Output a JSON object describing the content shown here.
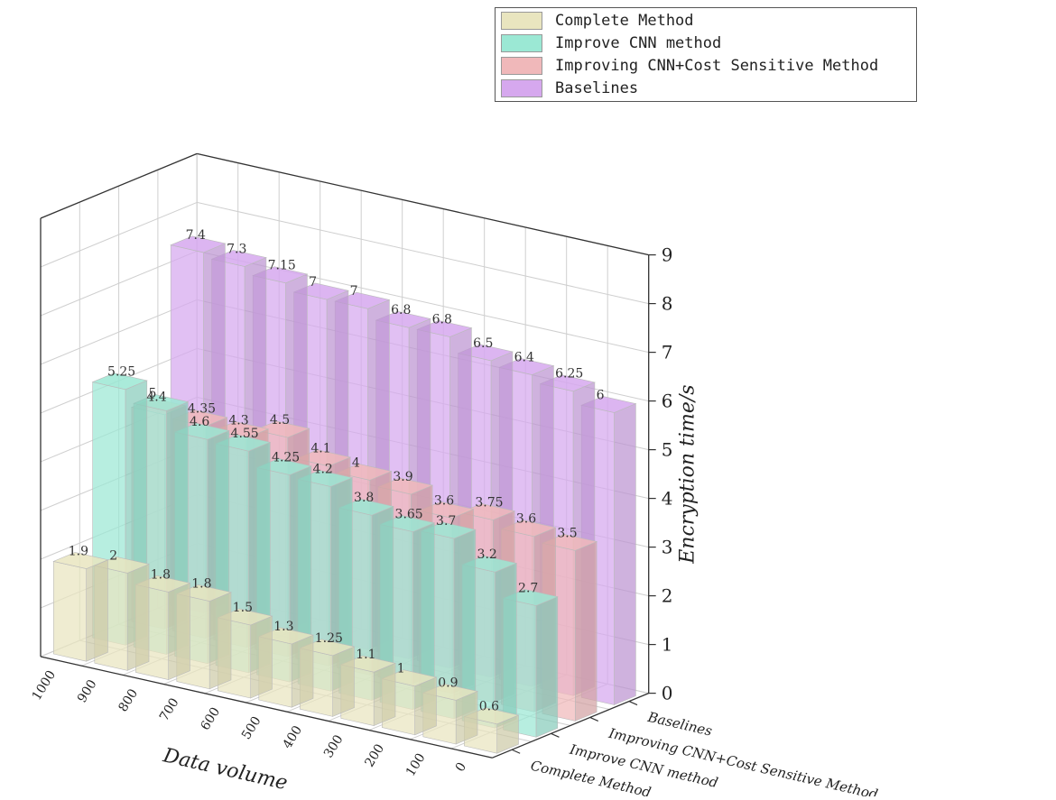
{
  "chart_data": {
    "type": "bar",
    "subtype": "3d-grouped",
    "x": [
      1000,
      900,
      800,
      700,
      600,
      500,
      400,
      300,
      200,
      100,
      0
    ],
    "xlabel": "Data volume",
    "ylabel": "Encryption time/s",
    "ylim": [
      0,
      9
    ],
    "yticks": [
      0,
      1,
      2,
      3,
      4,
      5,
      6,
      7,
      8,
      9
    ],
    "grid": true,
    "legend_position": "top-right",
    "series": [
      {
        "name": "Complete Method",
        "color": "#e9e5bf",
        "values": [
          1.9,
          2,
          1.8,
          1.8,
          1.5,
          1.3,
          1.25,
          1.1,
          1,
          0.9,
          0.6
        ]
      },
      {
        "name": "Improve CNN method",
        "color": "#9be8d4",
        "values": [
          5.25,
          5,
          4.6,
          4.55,
          4.25,
          4.2,
          3.8,
          3.65,
          3.7,
          3.2,
          2.7
        ]
      },
      {
        "name": "Improving CNN+Cost Sensitive Method",
        "color": "#f0b8ba",
        "values": [
          4.4,
          4.35,
          4.3,
          4.5,
          4.1,
          4,
          3.9,
          3.6,
          3.75,
          3.6,
          3.5
        ]
      },
      {
        "name": "Baselines",
        "color": "#d6a8ee",
        "values": [
          7.4,
          7.3,
          7.15,
          7,
          7,
          6.8,
          6.8,
          6.5,
          6.4,
          6.25,
          6
        ]
      }
    ]
  }
}
